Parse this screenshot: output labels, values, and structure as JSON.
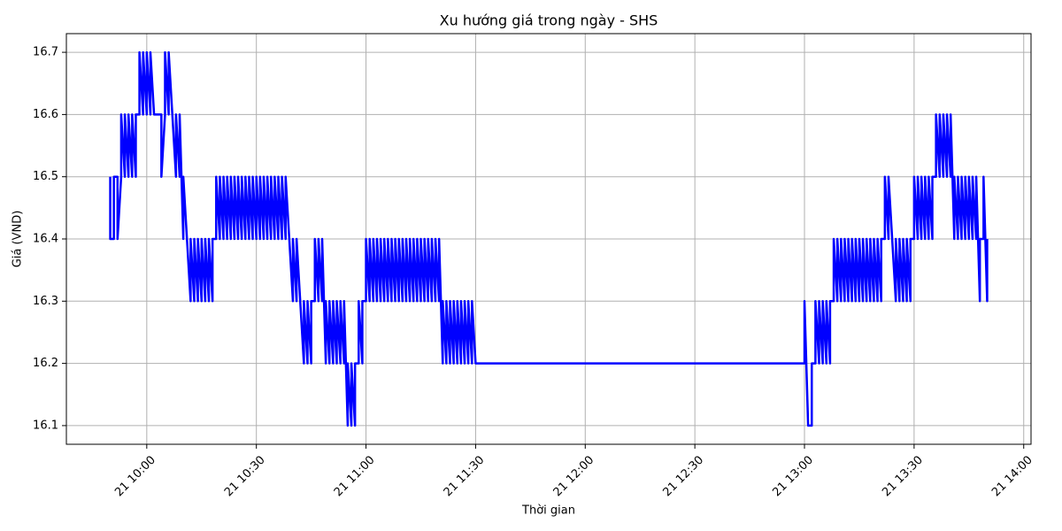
{
  "chart_data": {
    "type": "line",
    "title": "Xu hướng giá trong ngày - SHS",
    "x_label": "Thời gian",
    "y_label": "Giá (VND)",
    "color": "blue",
    "grid": true,
    "xlim": [
      "21 09:38",
      "21 14:02"
    ],
    "ylim": [
      16.07,
      16.73
    ],
    "xticks": [
      "21 10:00",
      "21 10:30",
      "21 11:00",
      "21 11:30",
      "21 12:00",
      "21 12:30",
      "21 13:00",
      "21 13:30",
      "21 14:00"
    ],
    "yticks": [
      16.1,
      16.2,
      16.3,
      16.4,
      16.5,
      16.6,
      16.7
    ],
    "x": [
      "21 09:50",
      "21 09:50",
      "21 09:51",
      "21 09:51",
      "21 09:52",
      "21 09:52",
      "21 09:53",
      "21 09:53",
      "21 09:54",
      "21 09:54",
      "21 09:55",
      "21 09:55",
      "21 09:56",
      "21 09:56",
      "21 09:57",
      "21 09:57",
      "21 09:58",
      "21 09:58",
      "21 09:59",
      "21 09:59",
      "21 10:00",
      "21 10:00",
      "21 10:01",
      "21 10:01",
      "21 10:02",
      "21 10:02",
      "21 10:04",
      "21 10:04",
      "21 10:05",
      "21 10:05",
      "21 10:06",
      "21 10:06",
      "21 10:07",
      "21 10:07",
      "21 10:08",
      "21 10:08",
      "21 10:09",
      "21 10:09",
      "21 10:10",
      "21 10:10",
      "21 10:11",
      "21 10:11",
      "21 10:12",
      "21 10:12",
      "21 10:13",
      "21 10:13",
      "21 10:14",
      "21 10:14",
      "21 10:15",
      "21 10:15",
      "21 10:16",
      "21 10:16",
      "21 10:17",
      "21 10:17",
      "21 10:18",
      "21 10:18",
      "21 10:19",
      "21 10:19",
      "21 10:20",
      "21 10:20",
      "21 10:21",
      "21 10:21",
      "21 10:22",
      "21 10:22",
      "21 10:23",
      "21 10:23",
      "21 10:24",
      "21 10:24",
      "21 10:25",
      "21 10:25",
      "21 10:26",
      "21 10:26",
      "21 10:27",
      "21 10:27",
      "21 10:28",
      "21 10:28",
      "21 10:29",
      "21 10:29",
      "21 10:30",
      "21 10:30",
      "21 10:31",
      "21 10:31",
      "21 10:32",
      "21 10:32",
      "21 10:33",
      "21 10:33",
      "21 10:34",
      "21 10:34",
      "21 10:35",
      "21 10:35",
      "21 10:36",
      "21 10:36",
      "21 10:37",
      "21 10:37",
      "21 10:38",
      "21 10:38",
      "21 10:39",
      "21 10:39",
      "21 10:40",
      "21 10:40",
      "21 10:41",
      "21 10:41",
      "21 10:42",
      "21 10:42",
      "21 10:43",
      "21 10:43",
      "21 10:44",
      "21 10:44",
      "21 10:45",
      "21 10:45",
      "21 10:46",
      "21 10:46",
      "21 10:47",
      "21 10:47",
      "21 10:48",
      "21 10:48",
      "21 10:49",
      "21 10:49",
      "21 10:50",
      "21 10:50",
      "21 10:51",
      "21 10:51",
      "21 10:52",
      "21 10:52",
      "21 10:53",
      "21 10:53",
      "21 10:54",
      "21 10:54",
      "21 10:55",
      "21 10:55",
      "21 10:56",
      "21 10:56",
      "21 10:57",
      "21 10:57",
      "21 10:58",
      "21 10:58",
      "21 10:59",
      "21 10:59",
      "21 11:00",
      "21 11:00",
      "21 11:01",
      "21 11:01",
      "21 11:02",
      "21 11:02",
      "21 11:03",
      "21 11:03",
      "21 11:04",
      "21 11:04",
      "21 11:05",
      "21 11:05",
      "21 11:06",
      "21 11:06",
      "21 11:07",
      "21 11:07",
      "21 11:08",
      "21 11:08",
      "21 11:09",
      "21 11:09",
      "21 11:10",
      "21 11:10",
      "21 11:11",
      "21 11:11",
      "21 11:12",
      "21 11:12",
      "21 11:13",
      "21 11:13",
      "21 11:14",
      "21 11:14",
      "21 11:15",
      "21 11:15",
      "21 11:16",
      "21 11:16",
      "21 11:17",
      "21 11:17",
      "21 11:18",
      "21 11:18",
      "21 11:19",
      "21 11:19",
      "21 11:20",
      "21 11:20",
      "21 11:21",
      "21 11:21",
      "21 11:22",
      "21 11:22",
      "21 11:23",
      "21 11:23",
      "21 11:24",
      "21 11:24",
      "21 11:25",
      "21 11:25",
      "21 11:26",
      "21 11:26",
      "21 11:27",
      "21 11:27",
      "21 11:28",
      "21 11:28",
      "21 11:29",
      "21 11:29",
      "21 11:30",
      "21 11:30",
      "21 13:00",
      "21 13:00",
      "21 13:01",
      "21 13:01",
      "21 13:02",
      "21 13:02",
      "21 13:03",
      "21 13:03",
      "21 13:04",
      "21 13:04",
      "21 13:05",
      "21 13:05",
      "21 13:06",
      "21 13:06",
      "21 13:07",
      "21 13:07",
      "21 13:08",
      "21 13:08",
      "21 13:09",
      "21 13:09",
      "21 13:10",
      "21 13:10",
      "21 13:11",
      "21 13:11",
      "21 13:12",
      "21 13:12",
      "21 13:13",
      "21 13:13",
      "21 13:14",
      "21 13:14",
      "21 13:15",
      "21 13:15",
      "21 13:16",
      "21 13:16",
      "21 13:17",
      "21 13:17",
      "21 13:18",
      "21 13:18",
      "21 13:19",
      "21 13:19",
      "21 13:20",
      "21 13:20",
      "21 13:21",
      "21 13:21",
      "21 13:22",
      "21 13:22",
      "21 13:23",
      "21 13:23",
      "21 13:24",
      "21 13:24",
      "21 13:25",
      "21 13:25",
      "21 13:26",
      "21 13:26",
      "21 13:27",
      "21 13:27",
      "21 13:28",
      "21 13:28",
      "21 13:29",
      "21 13:29",
      "21 13:30",
      "21 13:30",
      "21 13:31",
      "21 13:31",
      "21 13:32",
      "21 13:32",
      "21 13:33",
      "21 13:33",
      "21 13:34",
      "21 13:34",
      "21 13:35",
      "21 13:35",
      "21 13:36",
      "21 13:36",
      "21 13:37",
      "21 13:37",
      "21 13:38",
      "21 13:38",
      "21 13:39",
      "21 13:39",
      "21 13:40",
      "21 13:40",
      "21 13:41",
      "21 13:41",
      "21 13:42",
      "21 13:42",
      "21 13:43",
      "21 13:43",
      "21 13:44",
      "21 13:44",
      "21 13:45",
      "21 13:45",
      "21 13:46",
      "21 13:46",
      "21 13:47",
      "21 13:47",
      "21 13:48",
      "21 13:48",
      "21 13:49",
      "21 13:49",
      "21 13:50",
      "21 13:50"
    ],
    "values": [
      16.5,
      16.4,
      16.4,
      16.5,
      16.5,
      16.4,
      16.5,
      16.6,
      16.5,
      16.6,
      16.5,
      16.6,
      16.5,
      16.6,
      16.5,
      16.6,
      16.6,
      16.7,
      16.6,
      16.7,
      16.6,
      16.7,
      16.6,
      16.7,
      16.6,
      16.6,
      16.6,
      16.5,
      16.6,
      16.7,
      16.6,
      16.7,
      16.6,
      16.6,
      16.5,
      16.6,
      16.5,
      16.6,
      16.4,
      16.5,
      16.4,
      16.4,
      16.3,
      16.4,
      16.3,
      16.4,
      16.3,
      16.4,
      16.3,
      16.4,
      16.3,
      16.4,
      16.3,
      16.4,
      16.3,
      16.4,
      16.4,
      16.5,
      16.4,
      16.5,
      16.4,
      16.5,
      16.4,
      16.5,
      16.4,
      16.5,
      16.4,
      16.5,
      16.4,
      16.5,
      16.4,
      16.5,
      16.4,
      16.5,
      16.4,
      16.5,
      16.4,
      16.5,
      16.4,
      16.5,
      16.4,
      16.5,
      16.4,
      16.5,
      16.4,
      16.5,
      16.4,
      16.5,
      16.4,
      16.5,
      16.4,
      16.5,
      16.4,
      16.5,
      16.4,
      16.5,
      16.4,
      16.4,
      16.3,
      16.4,
      16.3,
      16.4,
      16.3,
      16.3,
      16.2,
      16.3,
      16.2,
      16.3,
      16.2,
      16.3,
      16.3,
      16.4,
      16.3,
      16.4,
      16.3,
      16.4,
      16.2,
      16.3,
      16.2,
      16.3,
      16.2,
      16.3,
      16.2,
      16.3,
      16.2,
      16.3,
      16.2,
      16.3,
      16.1,
      16.2,
      16.1,
      16.2,
      16.1,
      16.2,
      16.2,
      16.3,
      16.2,
      16.3,
      16.3,
      16.4,
      16.3,
      16.4,
      16.3,
      16.4,
      16.3,
      16.4,
      16.3,
      16.4,
      16.3,
      16.4,
      16.3,
      16.4,
      16.3,
      16.4,
      16.3,
      16.4,
      16.3,
      16.4,
      16.3,
      16.4,
      16.3,
      16.4,
      16.3,
      16.4,
      16.3,
      16.4,
      16.3,
      16.4,
      16.3,
      16.4,
      16.3,
      16.4,
      16.3,
      16.4,
      16.3,
      16.4,
      16.3,
      16.4,
      16.3,
      16.4,
      16.2,
      16.3,
      16.2,
      16.3,
      16.2,
      16.3,
      16.2,
      16.3,
      16.2,
      16.3,
      16.2,
      16.3,
      16.2,
      16.3,
      16.2,
      16.3,
      16.2,
      16.3,
      16.2,
      16.2,
      16.2,
      16.3,
      16.1,
      16.1,
      16.1,
      16.2,
      16.2,
      16.3,
      16.2,
      16.3,
      16.2,
      16.3,
      16.2,
      16.3,
      16.2,
      16.3,
      16.3,
      16.4,
      16.3,
      16.4,
      16.3,
      16.4,
      16.3,
      16.4,
      16.3,
      16.4,
      16.3,
      16.4,
      16.3,
      16.4,
      16.3,
      16.4,
      16.3,
      16.4,
      16.3,
      16.4,
      16.3,
      16.4,
      16.3,
      16.4,
      16.3,
      16.4,
      16.3,
      16.4,
      16.4,
      16.5,
      16.4,
      16.5,
      16.4,
      16.4,
      16.3,
      16.4,
      16.3,
      16.4,
      16.3,
      16.4,
      16.3,
      16.4,
      16.3,
      16.4,
      16.4,
      16.5,
      16.4,
      16.5,
      16.4,
      16.5,
      16.4,
      16.5,
      16.4,
      16.5,
      16.4,
      16.5,
      16.5,
      16.6,
      16.5,
      16.6,
      16.5,
      16.6,
      16.5,
      16.6,
      16.5,
      16.6,
      16.4,
      16.5,
      16.4,
      16.5,
      16.4,
      16.5,
      16.4,
      16.5,
      16.4,
      16.5,
      16.4,
      16.5,
      16.4,
      16.5,
      16.3,
      16.4,
      16.4,
      16.5,
      16.3,
      16.4
    ]
  }
}
